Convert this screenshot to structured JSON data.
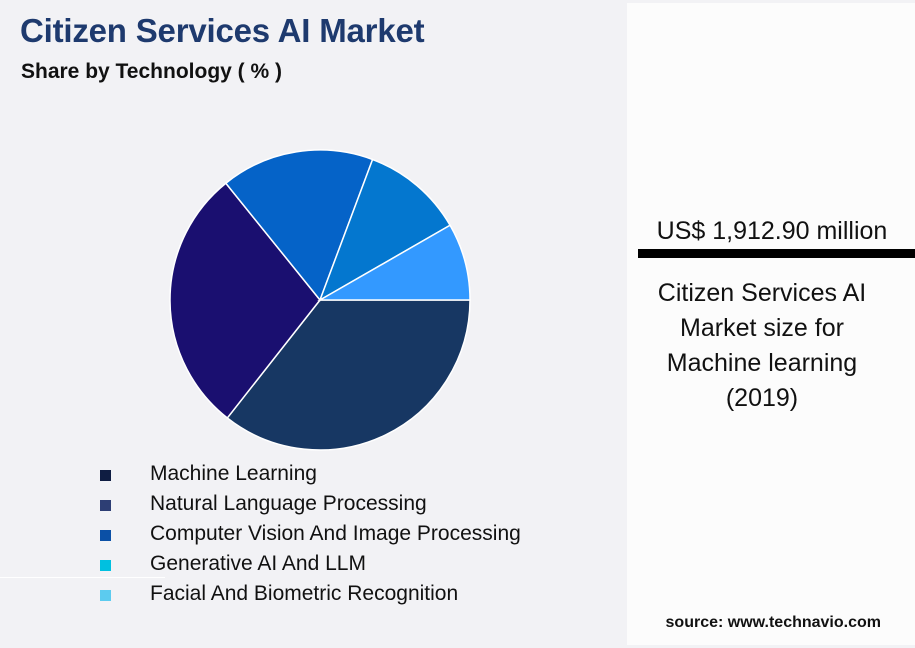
{
  "header": {
    "title": "Citizen Services AI Market",
    "subtitle": "Share by Technology ( % )"
  },
  "chart_data": {
    "type": "pie",
    "title": "Citizen Services AI Market",
    "subtitle": "Share by Technology ( % )",
    "categories": [
      "Machine Learning",
      "Natural Language Processing",
      "Computer Vision And Image Processing",
      "Generative AI And LLM",
      "Facial And Biometric Recognition"
    ],
    "values": [
      35.6,
      28.6,
      16.5,
      11.0,
      8.3
    ],
    "slice_colors": [
      "#173763",
      "#1a0f70",
      "#0563c8",
      "#0477cf",
      "#3399ff"
    ],
    "legend_colors": [
      "#0f1d42",
      "#2d3e74",
      "#0b50a6",
      "#00c0e0",
      "#5ccbef"
    ],
    "start_angle_deg": 0,
    "direction": "clockwise",
    "legend_position": "bottom",
    "data_labels": false
  },
  "legend": {
    "items": [
      {
        "label": "Machine Learning",
        "color": "#0f1d42"
      },
      {
        "label": "Natural Language Processing",
        "color": "#2d3e74"
      },
      {
        "label": "Computer Vision And Image Processing",
        "color": "#0b50a6"
      },
      {
        "label": "Generative AI And LLM",
        "color": "#00c0e0"
      },
      {
        "label": "Facial And Biometric Recognition",
        "color": "#5ccbef"
      }
    ]
  },
  "side_panel": {
    "value": "US$ 1,912.90 million",
    "caption_lines": [
      "Citizen Services AI",
      "Market size for",
      "Machine learning",
      "(2019)"
    ]
  },
  "footer": {
    "source": "source: www.technavio.com"
  }
}
